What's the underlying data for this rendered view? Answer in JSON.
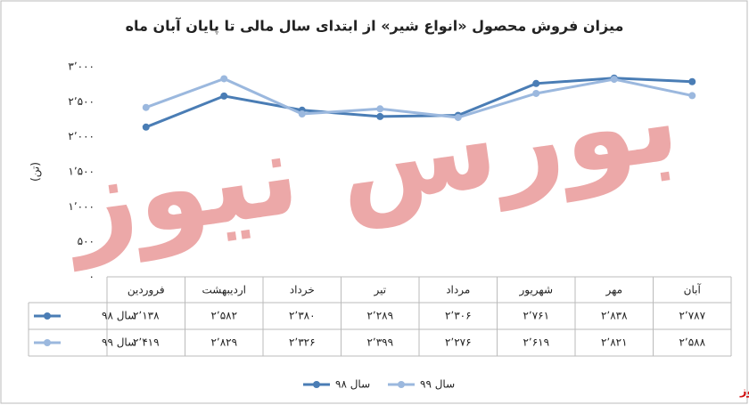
{
  "chart_data": {
    "type": "line",
    "title": "میزان فروش محصول «انواع شیر» از ابتدای سال مالی تا پایان آبان ماه",
    "y_label": "(تن)",
    "watermark": "بورس نیوز",
    "source": "بورس نیوز",
    "categories": [
      "فروردین",
      "اردیبهشت",
      "خرداد",
      "تیر",
      "مرداد",
      "شهریور",
      "مهر",
      "آبان"
    ],
    "series": [
      {
        "name": "سال ۹۸",
        "color": "#4a7db5",
        "values": [
          2138,
          2582,
          2380,
          2289,
          2306,
          2761,
          2838,
          2787
        ],
        "value_labels": [
          "۲٬۱۳۸",
          "۲٬۵۸۲",
          "۲٬۳۸۰",
          "۲٬۲۸۹",
          "۲٬۳۰۶",
          "۲٬۷۶۱",
          "۲٬۸۳۸",
          "۲٬۷۸۷"
        ]
      },
      {
        "name": "سال ۹۹",
        "color": "#9bb8de",
        "values": [
          2419,
          2829,
          2326,
          2399,
          2276,
          2619,
          2821,
          2588
        ],
        "value_labels": [
          "۲٬۴۱۹",
          "۲٬۸۲۹",
          "۲٬۳۲۶",
          "۲٬۳۹۹",
          "۲٬۲۷۶",
          "۲٬۶۱۹",
          "۲٬۸۲۱",
          "۲٬۵۸۸"
        ]
      }
    ],
    "ylim": [
      0,
      3000
    ],
    "yticks": [
      {
        "value": 0,
        "label": "۰"
      },
      {
        "value": 500,
        "label": "۵۰۰"
      },
      {
        "value": 1000,
        "label": "۱٬۰۰۰"
      },
      {
        "value": 1500,
        "label": "۱٬۵۰۰"
      },
      {
        "value": 2000,
        "label": "۲٬۰۰۰"
      },
      {
        "value": 2500,
        "label": "۲٬۵۰۰"
      },
      {
        "value": 3000,
        "label": "۳٬۰۰۰"
      }
    ],
    "grid": false
  }
}
